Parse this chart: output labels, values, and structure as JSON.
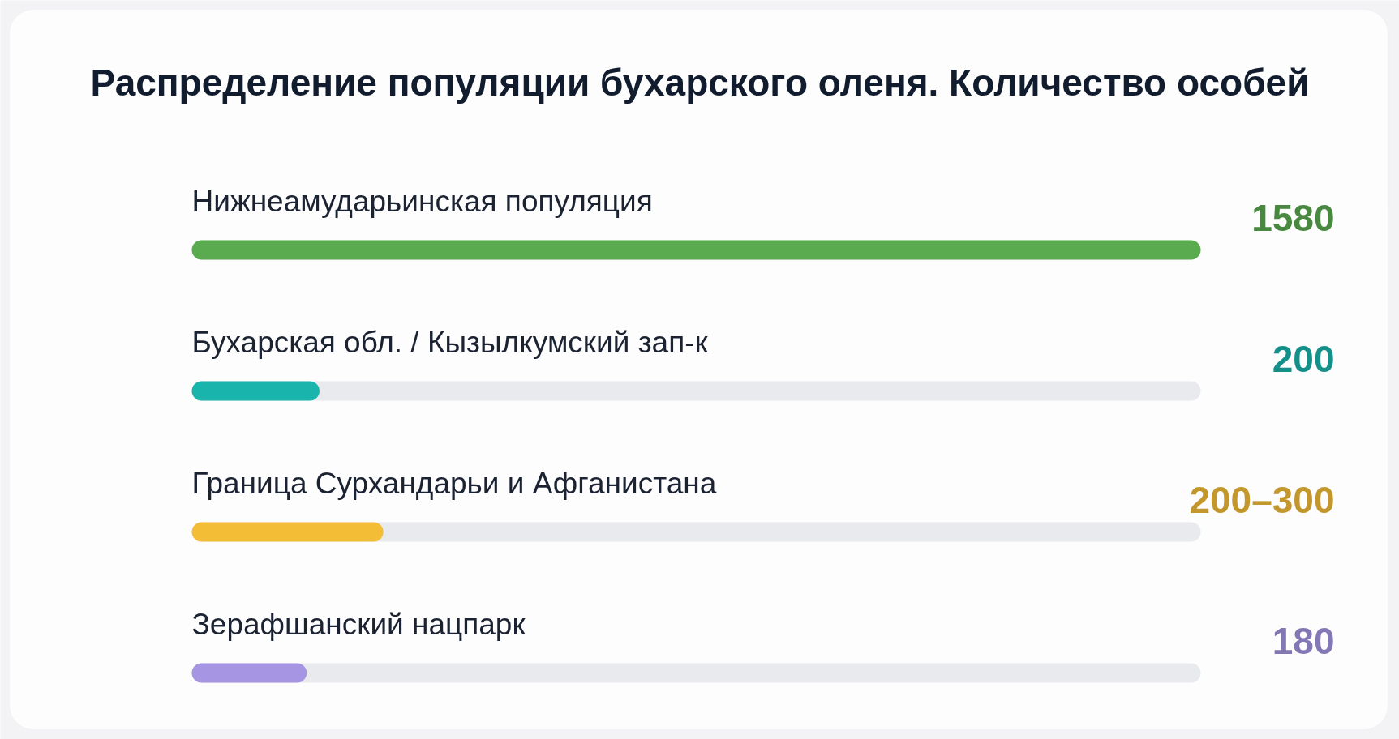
{
  "chart_data": {
    "type": "bar",
    "orientation": "horizontal",
    "title": "Распределение популяции бухарского оленя. Количество особей",
    "categories": [
      "Нижнеамударьинская популяция",
      "Бухарская обл. / Кызылкумский зап-к",
      "Граница Сурхандарьи и Афганистана",
      "Зерафшанский нацпарк"
    ],
    "values": [
      1580,
      200,
      300,
      180
    ],
    "value_labels": [
      "1580",
      "200",
      "200–300",
      "180"
    ],
    "colors": [
      "#5aab50",
      "#19b5ad",
      "#f4bd36",
      "#a595e3"
    ],
    "xlim": [
      0,
      1580
    ],
    "tick_labels": false
  }
}
